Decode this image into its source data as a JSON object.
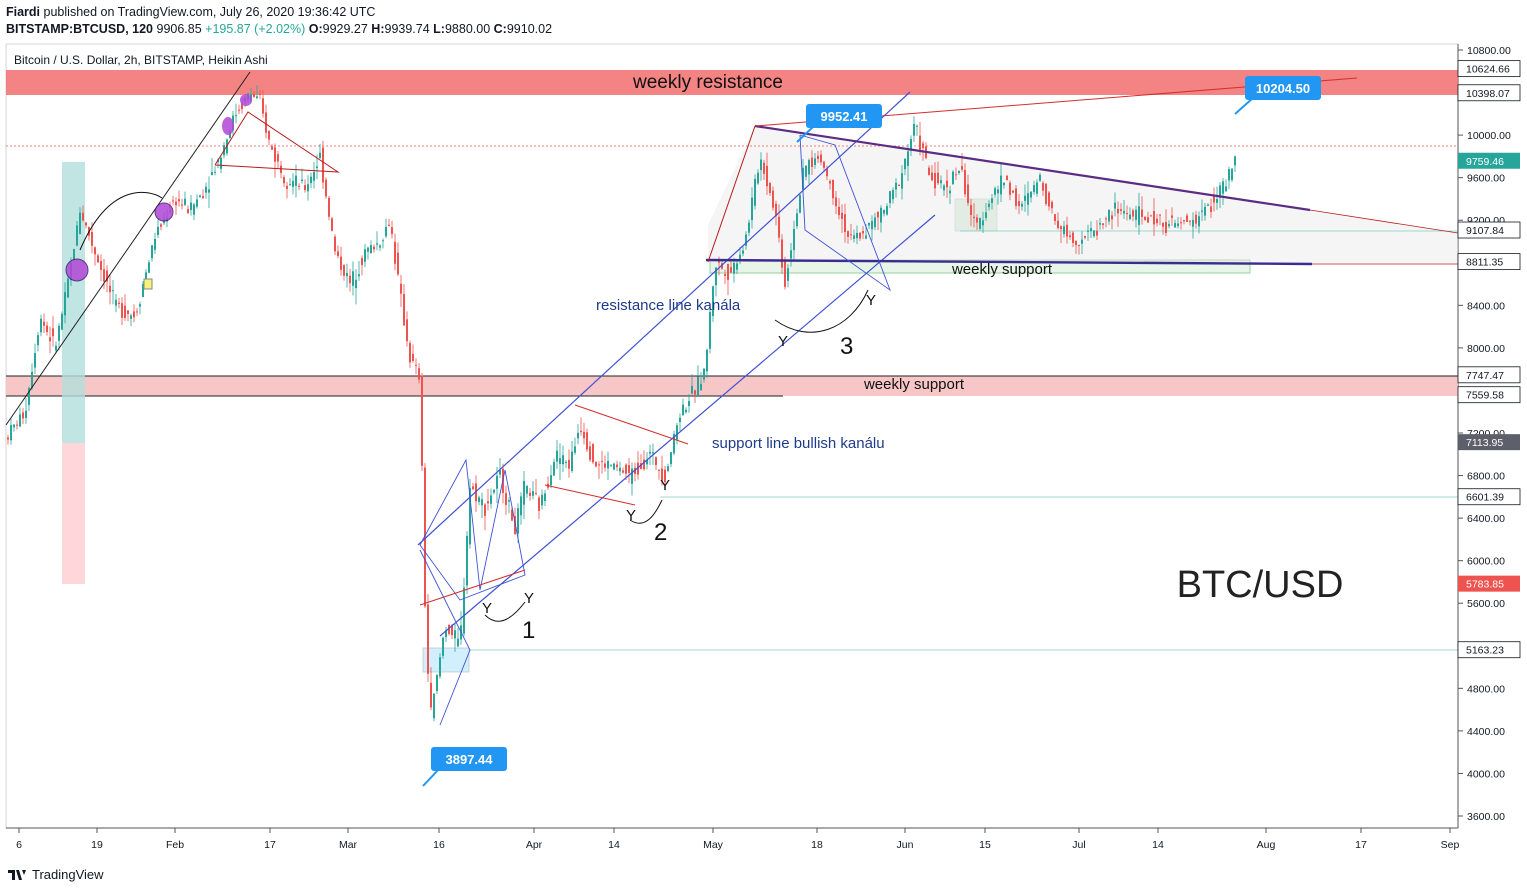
{
  "header": {
    "publisher": "Fiardi",
    "published_text": "published on TradingView.com, July 26, 2020 19:36:42 UTC",
    "symbol": "BITSTAMP:BTCUSD, 120",
    "price": "9906.85",
    "change": "+195.87 (+2.02%)",
    "o_label": "O:",
    "o": "9929.27",
    "h_label": "H:",
    "h": "9939.74",
    "l_label": "L:",
    "l": "9880.00",
    "c_label": "C:",
    "c": "9910.02"
  },
  "legend": "Bitcoin / U.S. Dollar, 2h, BITSTAMP, Heikin Ashi",
  "footer": {
    "brand": "TradingView"
  },
  "colors": {
    "up": "#26a69a",
    "down": "#ef5350",
    "resistance_zone": "#f26d6d",
    "support_zone": "#f6c1c1",
    "channel": "#3f51d6",
    "axis_text": "#131722",
    "price_tag": "#26a69a",
    "callout": "#2196f3"
  },
  "chart_data": {
    "type": "candlestick",
    "title": "Bitcoin / U.S. Dollar, 2h, BITSTAMP, Heikin Ashi",
    "big_label": "BTC/USD",
    "x_ticks": [
      "6",
      "19",
      "Feb",
      "17",
      "Mar",
      "16",
      "Apr",
      "14",
      "May",
      "18",
      "Jun",
      "15",
      "Jul",
      "14",
      "Aug",
      "17",
      "Sep"
    ],
    "y_ticks": [
      "10800.00",
      "10400.00",
      "10000.00",
      "9600.00",
      "9200.00",
      "8800.00",
      "8400.00",
      "8000.00",
      "7600.00",
      "7200.00",
      "6800.00",
      "6400.00",
      "6000.00",
      "5600.00",
      "5200.00",
      "4800.00",
      "4400.00",
      "4000.00",
      "3600.00"
    ],
    "y_range": [
      3500,
      10900
    ],
    "price_tags": [
      {
        "value": "10624.66",
        "y": 10625,
        "kind": "dark"
      },
      {
        "value": "10398.07",
        "y": 10398,
        "kind": "dark"
      },
      {
        "value": "9759.46",
        "y": 9759,
        "kind": "green"
      },
      {
        "value": "9107.84",
        "y": 9108,
        "kind": "dark"
      },
      {
        "value": "8811.35",
        "y": 8811,
        "kind": "dark"
      },
      {
        "value": "7747.47",
        "y": 7747,
        "kind": "dark"
      },
      {
        "value": "7559.58",
        "y": 7560,
        "kind": "dark"
      },
      {
        "value": "7113.95",
        "y": 7114,
        "kind": "gray"
      },
      {
        "value": "6601.39",
        "y": 6601,
        "kind": "dark"
      },
      {
        "value": "5783.85",
        "y": 5784,
        "kind": "red"
      },
      {
        "value": "5163.23",
        "y": 5163,
        "kind": "dark"
      }
    ],
    "callouts": [
      {
        "text": "10204.50",
        "y": 10204.5
      },
      {
        "text": "9952.41",
        "y": 9952.41
      },
      {
        "text": "3897.44",
        "y": 3897.44
      }
    ],
    "annotations": [
      {
        "text": "weekly resistance"
      },
      {
        "text": "weekly support"
      },
      {
        "text": "weekly support"
      },
      {
        "text": "resistance line kanála"
      },
      {
        "text": "support line bullish kanálu"
      },
      {
        "text": "1"
      },
      {
        "text": "2"
      },
      {
        "text": "3"
      },
      {
        "text": "Y"
      }
    ],
    "price_path": [
      [
        0,
        7150
      ],
      [
        20,
        7400
      ],
      [
        35,
        8300
      ],
      [
        50,
        8000
      ],
      [
        60,
        8450
      ],
      [
        75,
        9300
      ],
      [
        90,
        8900
      ],
      [
        110,
        8400
      ],
      [
        130,
        8300
      ],
      [
        150,
        9050
      ],
      [
        170,
        9400
      ],
      [
        185,
        9300
      ],
      [
        200,
        9500
      ],
      [
        215,
        9800
      ],
      [
        230,
        10200
      ],
      [
        245,
        10400
      ],
      [
        255,
        10300
      ],
      [
        265,
        9900
      ],
      [
        280,
        9600
      ],
      [
        300,
        9500
      ],
      [
        315,
        9800
      ],
      [
        330,
        8900
      ],
      [
        345,
        8600
      ],
      [
        360,
        8900
      ],
      [
        375,
        9000
      ],
      [
        385,
        9200
      ],
      [
        395,
        8500
      ],
      [
        405,
        7900
      ],
      [
        415,
        7700
      ],
      [
        420,
        5600
      ],
      [
        425,
        4500
      ],
      [
        432,
        4900
      ],
      [
        440,
        5400
      ],
      [
        455,
        5200
      ],
      [
        465,
        6700
      ],
      [
        480,
        6500
      ],
      [
        495,
        6800
      ],
      [
        510,
        6300
      ],
      [
        520,
        6700
      ],
      [
        535,
        6500
      ],
      [
        550,
        7000
      ],
      [
        565,
        6900
      ],
      [
        575,
        7300
      ],
      [
        590,
        6900
      ],
      [
        605,
        6900
      ],
      [
        625,
        6800
      ],
      [
        645,
        7000
      ],
      [
        660,
        6800
      ],
      [
        675,
        7400
      ],
      [
        690,
        7600
      ],
      [
        700,
        7800
      ],
      [
        710,
        8800
      ],
      [
        725,
        8700
      ],
      [
        740,
        9000
      ],
      [
        755,
        9800
      ],
      [
        770,
        9300
      ],
      [
        780,
        8600
      ],
      [
        790,
        9200
      ],
      [
        800,
        9700
      ],
      [
        815,
        9800
      ],
      [
        830,
        9400
      ],
      [
        845,
        9000
      ],
      [
        860,
        9100
      ],
      [
        880,
        9300
      ],
      [
        895,
        9600
      ],
      [
        910,
        10100
      ],
      [
        925,
        9600
      ],
      [
        940,
        9500
      ],
      [
        955,
        9700
      ],
      [
        970,
        9100
      ],
      [
        985,
        9400
      ],
      [
        1000,
        9600
      ],
      [
        1015,
        9300
      ],
      [
        1035,
        9600
      ],
      [
        1050,
        9200
      ],
      [
        1070,
        9000
      ],
      [
        1090,
        9100
      ],
      [
        1110,
        9300
      ],
      [
        1130,
        9250
      ],
      [
        1150,
        9200
      ],
      [
        1170,
        9150
      ],
      [
        1190,
        9200
      ],
      [
        1210,
        9400
      ],
      [
        1225,
        9600
      ],
      [
        1235,
        9930
      ]
    ]
  }
}
